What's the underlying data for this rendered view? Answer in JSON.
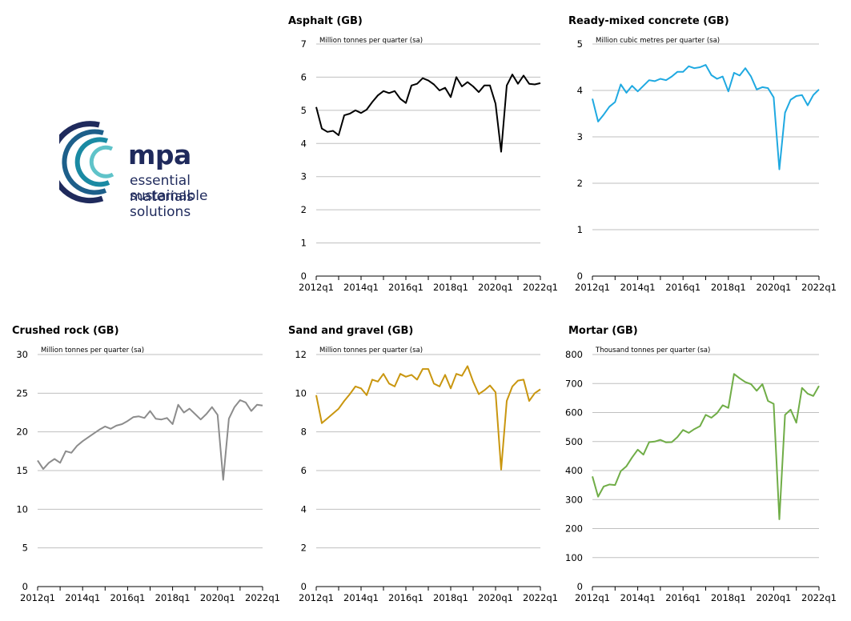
{
  "logo": {
    "brand": "mpa",
    "tagline_1": "essential materials",
    "tagline_2": "sustainable solutions"
  },
  "chart_data": [
    {
      "id": "asphalt",
      "type": "line",
      "title": "Asphalt (GB)",
      "ylabel": "Million tonnes per quarter (sa)",
      "color": "#000000",
      "ylim": [
        0,
        7
      ],
      "yticks": [
        0,
        1,
        2,
        3,
        4,
        5,
        6,
        7
      ],
      "xlabels": [
        "2012q1",
        "2014q1",
        "2016q1",
        "2018q1",
        "2020q1",
        "2022q1"
      ],
      "series": [
        {
          "name": "Asphalt (GB)",
          "values": [
            5.1,
            4.45,
            4.35,
            4.38,
            4.25,
            4.85,
            4.9,
            5.0,
            4.92,
            5.02,
            5.25,
            5.45,
            5.58,
            5.52,
            5.58,
            5.35,
            5.22,
            5.75,
            5.8,
            5.97,
            5.9,
            5.78,
            5.6,
            5.68,
            5.4,
            6.0,
            5.72,
            5.85,
            5.72,
            5.55,
            5.75,
            5.75,
            5.2,
            3.75,
            5.75,
            6.08,
            5.8,
            6.05,
            5.8,
            5.78,
            5.82
          ]
        }
      ]
    },
    {
      "id": "ready-mixed-concrete",
      "type": "line",
      "title": "Ready-mixed concrete (GB)",
      "ylabel": "Million cubic metres per quarter (sa)",
      "color": "#1fa9e1",
      "ylim": [
        0,
        5
      ],
      "yticks": [
        0,
        1,
        2,
        3,
        4,
        5
      ],
      "xlabels": [
        "2012q1",
        "2014q1",
        "2016q1",
        "2018q1",
        "2020q1",
        "2022q1"
      ],
      "series": [
        {
          "name": "Ready-mixed concrete (GB)",
          "values": [
            3.82,
            3.33,
            3.48,
            3.65,
            3.75,
            4.13,
            3.95,
            4.1,
            3.98,
            4.1,
            4.22,
            4.2,
            4.25,
            4.22,
            4.3,
            4.4,
            4.4,
            4.52,
            4.48,
            4.5,
            4.55,
            4.33,
            4.25,
            4.3,
            3.98,
            4.38,
            4.32,
            4.48,
            4.3,
            4.02,
            4.07,
            4.05,
            3.85,
            2.3,
            3.52,
            3.8,
            3.88,
            3.9,
            3.68,
            3.9,
            4.02
          ]
        }
      ]
    },
    {
      "id": "crushed-rock",
      "type": "line",
      "title": "Crushed rock (GB)",
      "ylabel": "Million tonnes per quarter (sa)",
      "color": "#8c8c8c",
      "ylim": [
        0,
        30
      ],
      "yticks": [
        0,
        5,
        10,
        15,
        20,
        25,
        30
      ],
      "xlabels": [
        "2012q1",
        "2014q1",
        "2016q1",
        "2018q1",
        "2020q1",
        "2022q1"
      ],
      "series": [
        {
          "name": "Crushed rock (GB)",
          "values": [
            16.3,
            15.2,
            16.0,
            16.5,
            16.0,
            17.5,
            17.3,
            18.2,
            18.8,
            19.3,
            19.8,
            20.3,
            20.7,
            20.4,
            20.8,
            21.0,
            21.4,
            21.9,
            22.0,
            21.8,
            22.7,
            21.7,
            21.6,
            21.8,
            21.0,
            23.5,
            22.5,
            23.0,
            22.3,
            21.6,
            22.3,
            23.2,
            22.2,
            13.8,
            21.7,
            23.2,
            24.1,
            23.8,
            22.7,
            23.5,
            23.4
          ]
        }
      ]
    },
    {
      "id": "sand-and-gravel",
      "type": "line",
      "title": "Sand and gravel (GB)",
      "ylabel": "Million tonnes per quarter (sa)",
      "color": "#c9960f",
      "ylim": [
        0,
        12
      ],
      "yticks": [
        0,
        2,
        4,
        6,
        8,
        10,
        12
      ],
      "xlabels": [
        "2012q1",
        "2014q1",
        "2016q1",
        "2018q1",
        "2020q1",
        "2022q1"
      ],
      "series": [
        {
          "name": "Sand and gravel (GB)",
          "values": [
            9.9,
            8.45,
            8.7,
            8.95,
            9.2,
            9.6,
            9.95,
            10.35,
            10.25,
            9.9,
            10.7,
            10.6,
            11.0,
            10.5,
            10.35,
            11.0,
            10.85,
            10.95,
            10.7,
            11.25,
            11.25,
            10.5,
            10.35,
            10.95,
            10.25,
            11.0,
            10.9,
            11.4,
            10.6,
            9.95,
            10.15,
            10.4,
            10.05,
            6.05,
            9.6,
            10.35,
            10.65,
            10.7,
            9.6,
            10.0,
            10.2
          ]
        }
      ]
    },
    {
      "id": "mortar",
      "type": "line",
      "title": "Mortar (GB)",
      "ylabel": "Thousand tonnes per quarter (sa)",
      "color": "#70ad47",
      "ylim": [
        0,
        800
      ],
      "yticks": [
        0,
        100,
        200,
        300,
        400,
        500,
        600,
        700,
        800
      ],
      "xlabels": [
        "2012q1",
        "2014q1",
        "2016q1",
        "2018q1",
        "2020q1",
        "2022q1"
      ],
      "series": [
        {
          "name": "Mortar (GB)",
          "values": [
            380,
            310,
            345,
            352,
            350,
            398,
            415,
            445,
            472,
            455,
            498,
            500,
            506,
            497,
            498,
            515,
            540,
            530,
            543,
            553,
            592,
            582,
            598,
            625,
            616,
            733,
            718,
            705,
            698,
            675,
            698,
            640,
            630,
            232,
            592,
            610,
            565,
            685,
            665,
            657,
            692
          ]
        }
      ]
    }
  ]
}
